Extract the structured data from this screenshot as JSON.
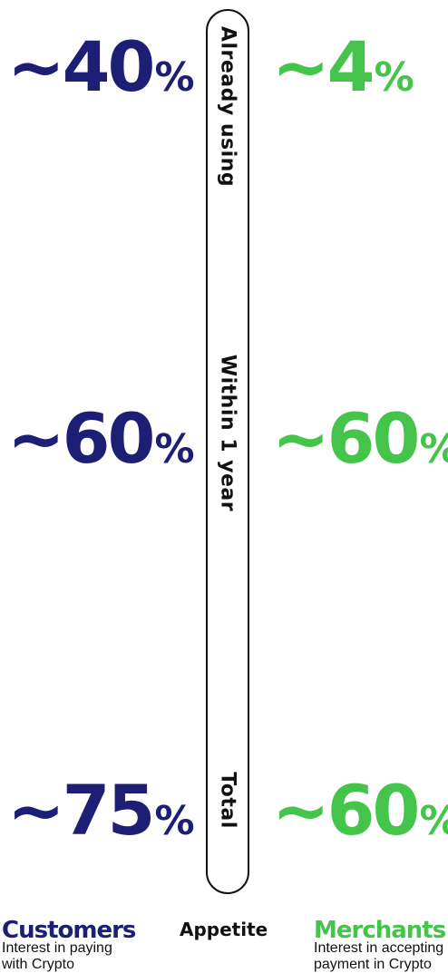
{
  "chart_data": {
    "type": "table",
    "categories": [
      "Already using",
      "Within 1 year",
      "Total"
    ],
    "center_title": "Appetite",
    "series": [
      {
        "name": "Customers",
        "description": "Interest in paying with Crypto",
        "values": [
          40,
          60,
          75
        ],
        "labels": [
          "~40",
          "~60",
          "~75"
        ],
        "color": "#1c1f73"
      },
      {
        "name": "Merchants",
        "description": "Interest in accepting payment in Crypto",
        "values": [
          4,
          60,
          60
        ],
        "labels": [
          "~4",
          "~60",
          "~60"
        ],
        "color": "#44c44a"
      }
    ],
    "unit_symbol": "%"
  }
}
